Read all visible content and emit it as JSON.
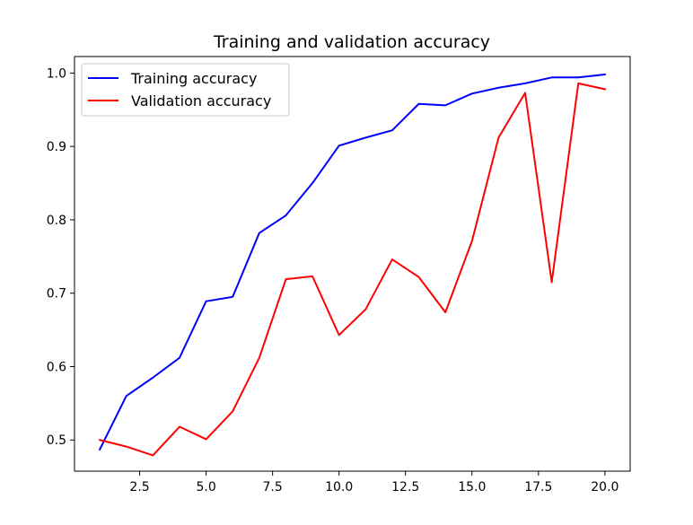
{
  "chart_data": {
    "type": "line",
    "title": "Training and validation accuracy",
    "xlabel": "",
    "ylabel": "",
    "xlim": [
      0.05,
      20.95
    ],
    "ylim": [
      0.4575,
      1.0225
    ],
    "xticks": [
      2.5,
      5.0,
      7.5,
      10.0,
      12.5,
      15.0,
      17.5,
      20.0
    ],
    "yticks": [
      0.5,
      0.6,
      0.7,
      0.8,
      0.9,
      1.0
    ],
    "xtick_labels": [
      "2.5",
      "5.0",
      "7.5",
      "10.0",
      "12.5",
      "15.0",
      "17.5",
      "20.0"
    ],
    "ytick_labels": [
      "0.5",
      "0.6",
      "0.7",
      "0.8",
      "0.9",
      "1.0"
    ],
    "grid": false,
    "legend_position": "top-left",
    "x": [
      1,
      2,
      3,
      4,
      5,
      6,
      7,
      8,
      9,
      10,
      11,
      12,
      13,
      14,
      15,
      16,
      17,
      18,
      19,
      20
    ],
    "series": [
      {
        "name": "Training accuracy",
        "color": "#0000ff",
        "values": [
          0.487,
          0.56,
          0.585,
          0.612,
          0.689,
          0.695,
          0.782,
          0.806,
          0.85,
          0.901,
          0.912,
          0.922,
          0.958,
          0.956,
          0.972,
          0.98,
          0.986,
          0.994,
          0.994,
          0.998
        ]
      },
      {
        "name": "Validation accuracy",
        "color": "#ff0000",
        "values": [
          0.5,
          0.491,
          0.479,
          0.518,
          0.501,
          0.539,
          0.612,
          0.719,
          0.723,
          0.643,
          0.678,
          0.746,
          0.722,
          0.674,
          0.771,
          0.912,
          0.973,
          0.715,
          0.986,
          0.978
        ]
      }
    ]
  }
}
